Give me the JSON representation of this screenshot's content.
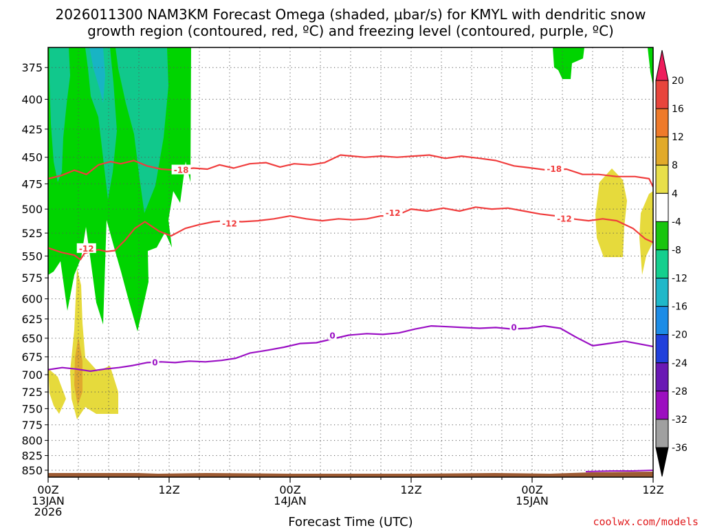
{
  "chart_data": {
    "type": "heatmap",
    "title_lines": [
      "2026011300 NAM3KM Forecast Omega (shaded, μbar/s) for KMYL with dendritic snow",
      "growth region (contoured, red, ºC) and freezing level (contoured, purple, ºC)"
    ],
    "xlabel": "Forecast Time (UTC)",
    "credit": "coolwx.com/models",
    "xlim": [
      0,
      60
    ],
    "ylim": [
      862,
      360
    ],
    "y_scale": "log",
    "y_ticks": [
      375,
      400,
      425,
      450,
      475,
      500,
      525,
      550,
      575,
      600,
      625,
      650,
      675,
      700,
      725,
      750,
      775,
      800,
      825,
      850
    ],
    "x_ticks": [
      {
        "hour": 0,
        "lines": [
          "00Z",
          "13JAN",
          "2026"
        ]
      },
      {
        "hour": 12,
        "lines": [
          "12Z"
        ]
      },
      {
        "hour": 24,
        "lines": [
          "00Z",
          "14JAN"
        ]
      },
      {
        "hour": 36,
        "lines": [
          "12Z"
        ]
      },
      {
        "hour": 48,
        "lines": [
          "00Z",
          "15JAN"
        ]
      },
      {
        "hour": 60,
        "lines": [
          "12Z"
        ]
      }
    ],
    "grid": true,
    "colorbar": {
      "labels": [
        "20",
        "16",
        "12",
        "8",
        "4",
        "-4",
        "-8",
        "-12",
        "-16",
        "-20",
        "-24",
        "-28",
        "-32",
        "-36"
      ],
      "colors": [
        "#ee1c5c",
        "#e8453c",
        "#ef7a2a",
        "#e1aa2a",
        "#e8df4a",
        "#ffffff",
        "#19c50e",
        "#14cf8e",
        "#1fb8c9",
        "#1c8ce6",
        "#2040dc",
        "#6a18b4",
        "#9c0ec0",
        "#a0a0a0",
        "#000000"
      ]
    },
    "omega_fill_colors": {
      "neg4_to_neg8": "#00d400",
      "neg8_to_neg12": "#11c88c",
      "neg12_to_neg16": "#18b4c4",
      "pos4_to_pos8": "#e6da3c",
      "pos8_to_pos12": "#e0a92e"
    },
    "contour_colors": {
      "dgz": "#f03c3c",
      "freezing": "#9a0fc4",
      "terrain": "#9c5a32"
    },
    "series": [
      {
        "name": "-18",
        "color": "#f03c3c",
        "x": [
          0,
          1.3,
          2.6,
          3.8,
          5,
          6.2,
          7.2,
          8.5,
          9.8,
          11.2,
          12.8,
          14.4,
          15.8,
          17,
          18.4,
          20,
          21.6,
          23,
          24.4,
          26,
          27.4,
          29,
          30.2,
          31.4,
          33,
          34.6,
          36.2,
          37.8,
          39.4,
          41,
          42.8,
          44.4,
          46.2,
          48,
          49.6,
          51.4,
          53,
          54.6,
          56.4,
          58.2,
          59.6,
          60
        ],
        "y": [
          470,
          467,
          462,
          466,
          457,
          454,
          456,
          453,
          458,
          461,
          462,
          460,
          461,
          457,
          460,
          456,
          455,
          459,
          456,
          457,
          455,
          448,
          449,
          450,
          449,
          450,
          449,
          448,
          451,
          449,
          451,
          453,
          458,
          460,
          462,
          461,
          466,
          466,
          468,
          468,
          470,
          478
        ],
        "labels": [
          {
            "x": 13.2,
            "y": 462,
            "text": "-18"
          },
          {
            "x": 50.2,
            "y": 461,
            "text": "-18"
          }
        ]
      },
      {
        "name": "-12",
        "color": "#f03c3c",
        "x": [
          0,
          1.3,
          2.6,
          3.2,
          3.6,
          5,
          5.8,
          6.6,
          7.6,
          8.6,
          9.6,
          11,
          12.2,
          13.6,
          15,
          16.4,
          17.6,
          19.2,
          20.8,
          22.4,
          24,
          25.6,
          27.2,
          28.8,
          30.2,
          31.6,
          33,
          34.4,
          36,
          37.6,
          39.2,
          40.8,
          42.4,
          44,
          45.6,
          47.2,
          48.8,
          50.4,
          52,
          53.6,
          55,
          56.4,
          58,
          59.2,
          60
        ],
        "y": [
          541,
          546,
          549,
          554,
          547,
          543,
          545,
          544,
          533,
          520,
          513,
          523,
          528,
          520,
          516,
          513,
          512,
          513,
          512,
          510,
          507,
          510,
          512,
          510,
          511,
          510,
          507,
          507,
          500,
          502,
          499,
          502,
          498,
          500,
          499,
          502,
          505,
          507,
          510,
          512,
          510,
          512,
          520,
          531,
          535
        ],
        "labels": [
          {
            "x": 3.8,
            "y": 542,
            "text": "-12"
          },
          {
            "x": 18,
            "y": 515,
            "text": "-12"
          },
          {
            "x": 34.2,
            "y": 504,
            "text": "-12"
          },
          {
            "x": 51.2,
            "y": 510,
            "text": "-12"
          }
        ]
      },
      {
        "name": "0",
        "color": "#9a0fc4",
        "x": [
          0,
          1.4,
          2.8,
          4.2,
          5.6,
          7,
          8.4,
          9.8,
          11.2,
          12.6,
          14,
          15.6,
          17.2,
          18.6,
          20,
          21.8,
          23.4,
          25,
          26.6,
          28.2,
          29.8,
          31.6,
          33.2,
          34.8,
          36.4,
          38,
          39.6,
          41.2,
          42.8,
          44.4,
          46,
          47.6,
          49.2,
          50.8,
          52.4,
          54,
          55.6,
          57.2,
          58.8,
          60
        ],
        "y": [
          693,
          690,
          692,
          695,
          692,
          690,
          687,
          683,
          682,
          683,
          681,
          682,
          680,
          677,
          670,
          666,
          662,
          657,
          656,
          651,
          646,
          644,
          645,
          643,
          638,
          634,
          635,
          636,
          637,
          636,
          638,
          637,
          634,
          637,
          649,
          660,
          657,
          654,
          658,
          661
        ],
        "labels": [
          {
            "x": 10.6,
            "y": 683,
            "text": "0"
          },
          {
            "x": 28.2,
            "y": 647,
            "text": "0"
          },
          {
            "x": 46.2,
            "y": 636,
            "text": "0"
          }
        ]
      }
    ]
  }
}
